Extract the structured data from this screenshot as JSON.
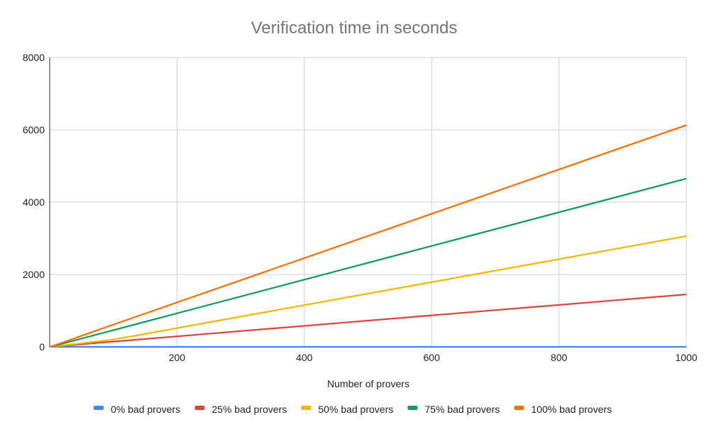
{
  "chart_data": {
    "type": "line",
    "title": "Verification time in seconds",
    "xlabel": "Number of provers",
    "ylabel": "",
    "xlim": [
      0,
      1000
    ],
    "ylim": [
      0,
      8000
    ],
    "x_ticks": [
      200,
      400,
      600,
      800,
      1000
    ],
    "y_ticks": [
      0,
      2000,
      4000,
      6000,
      8000
    ],
    "grid": true,
    "legend_position": "bottom",
    "x": [
      1,
      100,
      1000
    ],
    "series": [
      {
        "name": "0% bad provers",
        "color": "#4285f4",
        "values": [
          0,
          0,
          0
        ]
      },
      {
        "name": "25% bad provers",
        "color": "#db4437",
        "values": [
          0,
          145,
          1450
        ]
      },
      {
        "name": "50% bad provers",
        "color": "#f4b400",
        "values": [
          0,
          200,
          3060
        ]
      },
      {
        "name": "75% bad provers",
        "color": "#0f9d58",
        "values": [
          0,
          460,
          4650
        ]
      },
      {
        "name": "100% bad provers",
        "color": "#ff6d01",
        "values": [
          0,
          615,
          6130
        ]
      }
    ]
  }
}
